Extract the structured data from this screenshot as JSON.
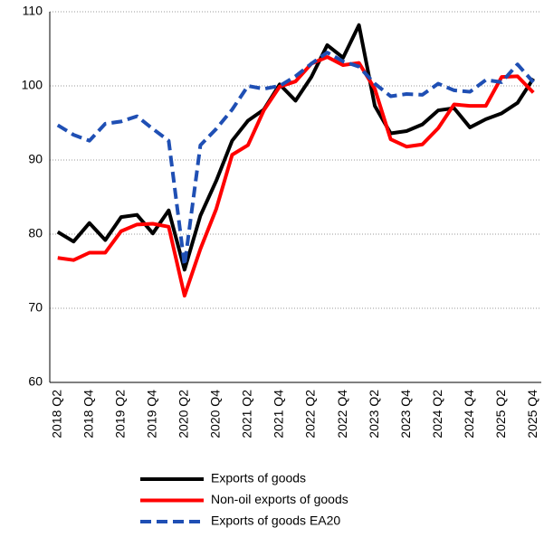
{
  "chart_data": {
    "type": "line",
    "categories": [
      "2018 Q2",
      null,
      "2018 Q4",
      null,
      "2019 Q2",
      null,
      "2019 Q4",
      null,
      "2020 Q2",
      null,
      "2020 Q4",
      null,
      "2021 Q2",
      null,
      "2021 Q4",
      null,
      "2022 Q2",
      null,
      "2022 Q4",
      null,
      "2023 Q2",
      null,
      "2023 Q4",
      null,
      "2024 Q2",
      null,
      "2024 Q4",
      null,
      "2025 Q2",
      null,
      "2025 Q4"
    ],
    "series": [
      {
        "name": "Exports of goods",
        "color": "#000000",
        "dash": false,
        "values": [
          80.3,
          79.0,
          81.5,
          79.2,
          82.3,
          82.6,
          80.1,
          83.2,
          75.2,
          82.5,
          87.2,
          92.6,
          95.3,
          96.8,
          100.2,
          98.0,
          101.2,
          105.5,
          103.8,
          108.2,
          97.3,
          93.6,
          93.9,
          94.8,
          96.7,
          97.0,
          94.4,
          95.5,
          96.3,
          97.7,
          101.0
        ]
      },
      {
        "name": "Non-oil exports of goods",
        "color": "#ff0000",
        "dash": false,
        "values": [
          76.8,
          76.5,
          77.5,
          77.5,
          80.4,
          81.3,
          81.4,
          81.0,
          71.7,
          78.0,
          83.4,
          90.7,
          92.0,
          96.7,
          99.9,
          100.6,
          103.0,
          103.9,
          102.8,
          103.1,
          99.6,
          92.8,
          91.8,
          92.1,
          94.3,
          97.5,
          97.3,
          97.3,
          101.2,
          101.3,
          99.1
        ]
      },
      {
        "name": "Exports of goods EA20",
        "color": "#1f4fb4",
        "dash": true,
        "values": [
          94.7,
          93.4,
          92.6,
          94.9,
          95.2,
          95.9,
          94.2,
          92.6,
          75.8,
          92.0,
          94.2,
          96.8,
          100.0,
          99.6,
          100.0,
          101.3,
          103.0,
          104.5,
          103.3,
          102.6,
          100.3,
          98.6,
          98.9,
          98.8,
          100.3,
          99.4,
          99.2,
          100.8,
          100.5,
          102.9,
          100.5
        ]
      }
    ],
    "ylim": [
      60,
      110
    ],
    "yticks": [
      60,
      70,
      80,
      90,
      100,
      110
    ],
    "grid": true
  }
}
